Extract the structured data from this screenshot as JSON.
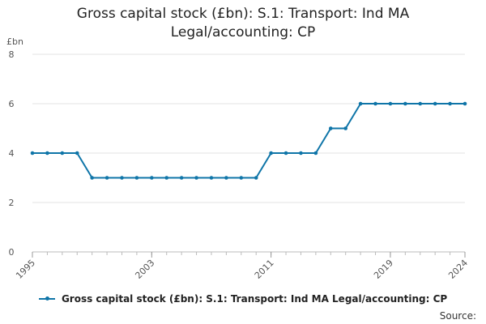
{
  "chart_data": {
    "type": "line",
    "title_line1": "Gross capital stock (£bn): S.1: Transport: Ind MA",
    "title_line2": "Legal/accounting: CP",
    "ylabel": "£bn",
    "ylim": [
      0,
      8
    ],
    "yticks": [
      0,
      2,
      4,
      6,
      8
    ],
    "xlim": [
      1995,
      2024
    ],
    "xticks": [
      1995,
      2003,
      2011,
      2019,
      2024
    ],
    "grid": true,
    "legend_position": "bottom",
    "series": [
      {
        "name": "Gross capital stock (£bn): S.1: Transport: Ind MA Legal/accounting: CP",
        "color": "#0f75a8",
        "x": [
          1995,
          1996,
          1997,
          1998,
          1999,
          2000,
          2001,
          2002,
          2003,
          2004,
          2005,
          2006,
          2007,
          2008,
          2009,
          2010,
          2011,
          2012,
          2013,
          2014,
          2015,
          2016,
          2017,
          2018,
          2019,
          2020,
          2021,
          2022,
          2023,
          2024
        ],
        "values": [
          4,
          4,
          4,
          4,
          3,
          3,
          3,
          3,
          3,
          3,
          3,
          3,
          3,
          3,
          3,
          3,
          4,
          4,
          4,
          4,
          5,
          5,
          6,
          6,
          6,
          6,
          6,
          6,
          6,
          6
        ]
      }
    ]
  },
  "source_label": "Source:"
}
